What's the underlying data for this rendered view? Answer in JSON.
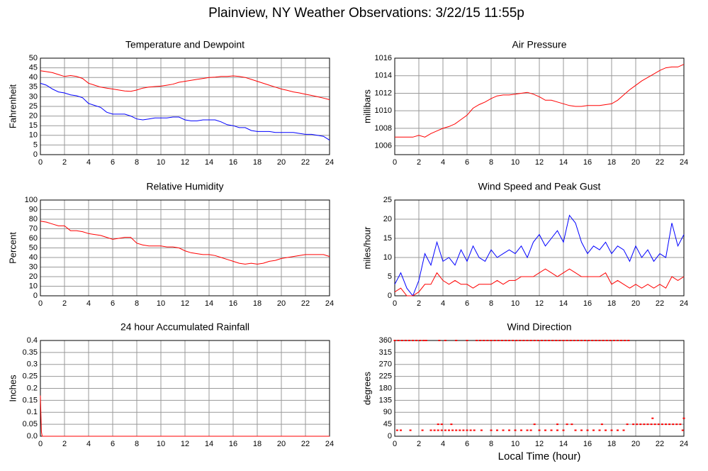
{
  "title": "Plainview, NY Weather Observations: 3/22/15 11:55p",
  "chart_data": [
    {
      "type": "line",
      "title": "Temperature and Dewpoint",
      "ylabel": "Fahrenheit",
      "grid": true,
      "xlim": [
        0,
        24
      ],
      "xticks": [
        0,
        2,
        4,
        6,
        8,
        10,
        12,
        14,
        16,
        18,
        20,
        22,
        24
      ],
      "ylim": [
        0,
        50
      ],
      "yticks": [
        0,
        5,
        10,
        15,
        20,
        25,
        30,
        35,
        40,
        45,
        50
      ],
      "x": [
        0,
        0.5,
        1,
        1.5,
        2,
        2.5,
        3,
        3.5,
        4,
        4.5,
        5,
        5.5,
        6,
        6.5,
        7,
        7.5,
        8,
        8.5,
        9,
        9.5,
        10,
        10.5,
        11,
        11.5,
        12,
        12.5,
        13,
        13.5,
        14,
        14.5,
        15,
        15.5,
        16,
        16.5,
        17,
        17.5,
        18,
        18.5,
        19,
        19.5,
        20,
        20.5,
        21,
        21.5,
        22,
        22.5,
        23,
        23.5,
        24
      ],
      "series": [
        {
          "color": "#ff0000",
          "values": [
            43.5,
            43,
            42.5,
            41.5,
            40.5,
            41,
            40.5,
            39.5,
            37,
            36,
            35,
            34.5,
            34,
            33.5,
            33,
            32.8,
            33.5,
            34.5,
            35,
            35.3,
            35.5,
            36,
            36.5,
            37.5,
            38,
            38.5,
            39,
            39.5,
            40,
            40.2,
            40.5,
            40.5,
            40.8,
            40.5,
            40,
            39,
            38,
            37,
            36,
            35,
            34,
            33.3,
            32.5,
            32,
            31.3,
            30.7,
            30,
            29.3,
            28.5
          ]
        },
        {
          "color": "#0000ff",
          "values": [
            37,
            36,
            34,
            32.5,
            32,
            31,
            30.5,
            29.5,
            26.5,
            25.5,
            24.5,
            22,
            21,
            21,
            21,
            20,
            18.5,
            18,
            18.5,
            19,
            19,
            19,
            19.5,
            19.5,
            18,
            17.5,
            17.5,
            18,
            18,
            18,
            17,
            15.5,
            15,
            14,
            14,
            12.5,
            12,
            12,
            12,
            11.5,
            11.5,
            11.5,
            11.5,
            11,
            10.5,
            10.5,
            10,
            9.5,
            7.5
          ]
        }
      ]
    },
    {
      "type": "line",
      "title": "Air Pressure",
      "ylabel": "millibars",
      "grid": true,
      "xlim": [
        0,
        24
      ],
      "xticks": [
        0,
        2,
        4,
        6,
        8,
        10,
        12,
        14,
        16,
        18,
        20,
        22,
        24
      ],
      "ylim": [
        1005,
        1016
      ],
      "yticks": [
        1006,
        1008,
        1010,
        1012,
        1014,
        1016
      ],
      "x": [
        0,
        0.5,
        1,
        1.5,
        2,
        2.5,
        3,
        3.5,
        4,
        4.5,
        5,
        5.5,
        6,
        6.5,
        7,
        7.5,
        8,
        8.5,
        9,
        9.5,
        10,
        10.5,
        11,
        11.5,
        12,
        12.5,
        13,
        13.5,
        14,
        14.5,
        15,
        15.5,
        16,
        16.5,
        17,
        17.5,
        18,
        18.5,
        19,
        19.5,
        20,
        20.5,
        21,
        21.5,
        22,
        22.5,
        23,
        23.5,
        24
      ],
      "series": [
        {
          "color": "#ff0000",
          "values": [
            1007,
            1007,
            1007,
            1007,
            1007.2,
            1007,
            1007.4,
            1007.7,
            1008,
            1008.2,
            1008.5,
            1009,
            1009.5,
            1010.3,
            1010.7,
            1011,
            1011.4,
            1011.7,
            1011.8,
            1011.8,
            1011.9,
            1012,
            1012.1,
            1011.9,
            1011.6,
            1011.2,
            1011.2,
            1011,
            1010.8,
            1010.6,
            1010.5,
            1010.5,
            1010.6,
            1010.6,
            1010.6,
            1010.7,
            1010.8,
            1011.2,
            1011.8,
            1012.4,
            1012.9,
            1013.4,
            1013.8,
            1014.2,
            1014.6,
            1014.9,
            1015,
            1015,
            1015.3
          ]
        }
      ]
    },
    {
      "type": "line",
      "title": "Relative Humidity",
      "ylabel": "Percent",
      "grid": true,
      "xlim": [
        0,
        24
      ],
      "xticks": [
        0,
        2,
        4,
        6,
        8,
        10,
        12,
        14,
        16,
        18,
        20,
        22,
        24
      ],
      "ylim": [
        0,
        100
      ],
      "yticks": [
        0,
        10,
        20,
        30,
        40,
        50,
        60,
        70,
        80,
        90,
        100
      ],
      "x": [
        0,
        0.5,
        1,
        1.5,
        2,
        2.5,
        3,
        3.5,
        4,
        4.5,
        5,
        5.5,
        6,
        6.5,
        7,
        7.5,
        8,
        8.5,
        9,
        9.5,
        10,
        10.5,
        11,
        11.5,
        12,
        12.5,
        13,
        13.5,
        14,
        14.5,
        15,
        15.5,
        16,
        16.5,
        17,
        17.5,
        18,
        18.5,
        19,
        19.5,
        20,
        20.5,
        21,
        21.5,
        22,
        22.5,
        23,
        23.5,
        24
      ],
      "series": [
        {
          "color": "#ff0000",
          "values": [
            78,
            77,
            75,
            73,
            73,
            68,
            68,
            67,
            65,
            64,
            63,
            61,
            59,
            60,
            61,
            61,
            55,
            53,
            52,
            52,
            52,
            51,
            51,
            50,
            47,
            45,
            44,
            43,
            43,
            42,
            40,
            38,
            36,
            34,
            33,
            34,
            33,
            34,
            36,
            37,
            39,
            40,
            41,
            42,
            43,
            43,
            43,
            43,
            41
          ]
        }
      ]
    },
    {
      "type": "line",
      "title": "Wind Speed and Peak Gust",
      "ylabel": "miles/hour",
      "grid": true,
      "xlim": [
        0,
        24
      ],
      "xticks": [
        0,
        2,
        4,
        6,
        8,
        10,
        12,
        14,
        16,
        18,
        20,
        22,
        24
      ],
      "ylim": [
        0,
        25
      ],
      "yticks": [
        0,
        5,
        10,
        15,
        20,
        25
      ],
      "x": [
        0,
        0.5,
        1,
        1.5,
        2,
        2.5,
        3,
        3.5,
        4,
        4.5,
        5,
        5.5,
        6,
        6.5,
        7,
        7.5,
        8,
        8.5,
        9,
        9.5,
        10,
        10.5,
        11,
        11.5,
        12,
        12.5,
        13,
        13.5,
        14,
        14.5,
        15,
        15.5,
        16,
        16.5,
        17,
        17.5,
        18,
        18.5,
        19,
        19.5,
        20,
        20.5,
        21,
        21.5,
        22,
        22.5,
        23,
        23.5,
        24
      ],
      "series": [
        {
          "color": "#0000ff",
          "values": [
            3,
            6,
            2,
            0,
            4,
            11,
            8,
            14,
            9,
            10,
            8,
            12,
            9,
            13,
            10,
            9,
            12,
            10,
            11,
            12,
            11,
            13,
            10,
            14,
            16,
            13,
            15,
            17,
            14,
            21,
            19,
            14,
            11,
            13,
            12,
            14,
            11,
            13,
            12,
            9,
            13,
            10,
            12,
            9,
            11,
            10,
            19,
            13,
            16
          ]
        },
        {
          "color": "#ff0000",
          "values": [
            1,
            2,
            0,
            0,
            1,
            3,
            3,
            6,
            4,
            3,
            4,
            3,
            3,
            2,
            3,
            3,
            3,
            4,
            3,
            4,
            4,
            5,
            5,
            5,
            6,
            7,
            6,
            5,
            6,
            7,
            6,
            5,
            5,
            5,
            5,
            6,
            3,
            4,
            3,
            2,
            3,
            2,
            3,
            2,
            3,
            2,
            5,
            4,
            5
          ]
        }
      ]
    },
    {
      "type": "line",
      "title": "24 hour Accumulated Rainfall",
      "ylabel": "Inches",
      "grid": true,
      "xlim": [
        0,
        24
      ],
      "xticks": [
        0,
        2,
        4,
        6,
        8,
        10,
        12,
        14,
        16,
        18,
        20,
        22,
        24
      ],
      "ylim": [
        0,
        0.4
      ],
      "yticks": [
        {
          "value": 0,
          "label": "0.0"
        },
        0.05,
        0.1,
        0.15,
        0.2,
        0.25,
        0.3,
        0.35,
        0.4
      ],
      "x": [
        0,
        0.08,
        0.15,
        24
      ],
      "series": [
        {
          "color": "#ff0000",
          "values": [
            0.17,
            0.02,
            0,
            0
          ]
        }
      ]
    },
    {
      "type": "scatter",
      "title": "Wind Direction",
      "ylabel": "degrees",
      "xlabel": "Local Time (hour)",
      "grid": true,
      "xlim": [
        0,
        24
      ],
      "xticks": [
        0,
        2,
        4,
        6,
        8,
        10,
        12,
        14,
        16,
        18,
        20,
        22,
        24
      ],
      "ylim": [
        0,
        360
      ],
      "yticks": [
        0,
        45,
        90,
        135,
        180,
        225,
        270,
        315,
        360
      ],
      "x": [
        0,
        0.3,
        0.6,
        0.9,
        1.2,
        1.5,
        1.8,
        2.1,
        2.4,
        2.6,
        3.7,
        4.2,
        5.1,
        6,
        6.8,
        7.1,
        7.4,
        7.7,
        8,
        8.3,
        8.6,
        8.9,
        9.2,
        9.5,
        9.8,
        10.1,
        10.4,
        10.7,
        11,
        11.3,
        11.6,
        11.9,
        12.2,
        12.5,
        12.8,
        13.1,
        13.4,
        13.7,
        14,
        14.3,
        14.6,
        14.9,
        15.2,
        15.5,
        15.8,
        16.1,
        16.4,
        16.7,
        17,
        17.3,
        17.6,
        17.9,
        18.2,
        18.5,
        18.8,
        19.1,
        19.4,
        0.2,
        0.5,
        1.3,
        2.3,
        3,
        3.3,
        3.6,
        3.9,
        4.2,
        4.5,
        4.8,
        5.1,
        5.4,
        5.7,
        6,
        6.3,
        6.6,
        7.2,
        8,
        8.5,
        9,
        9.5,
        10,
        10.5,
        11,
        11.3,
        12,
        12.5,
        13,
        13.5,
        14,
        15,
        15.5,
        16,
        16.5,
        17,
        17.5,
        18,
        18.5,
        19,
        19.3,
        3.6,
        3.9,
        4.7,
        11.6,
        13.5,
        14.3,
        14.7,
        17.2,
        19.8,
        20.1,
        20.4,
        20.7,
        21,
        21.3,
        21.6,
        21.9,
        22.2,
        22.5,
        22.8,
        23.1,
        23.4,
        23.7,
        24,
        21.4,
        23.9,
        22
      ],
      "series": [
        {
          "color": "#ff0000",
          "values": [
            360,
            360,
            360,
            360,
            360,
            360,
            360,
            360,
            360,
            360,
            360,
            360,
            360,
            360,
            360,
            360,
            360,
            360,
            360,
            360,
            360,
            360,
            360,
            360,
            360,
            360,
            360,
            360,
            360,
            360,
            360,
            360,
            360,
            360,
            360,
            360,
            360,
            360,
            360,
            360,
            360,
            360,
            360,
            360,
            360,
            360,
            360,
            360,
            360,
            360,
            360,
            360,
            360,
            360,
            360,
            360,
            360,
            22.5,
            22.5,
            22.5,
            22.5,
            22.5,
            22.5,
            22.5,
            22.5,
            22.5,
            22.5,
            22.5,
            22.5,
            22.5,
            22.5,
            22.5,
            22.5,
            22.5,
            22.5,
            22.5,
            22.5,
            22.5,
            22.5,
            22.5,
            22.5,
            22.5,
            22.5,
            22.5,
            22.5,
            22.5,
            22.5,
            22.5,
            22.5,
            22.5,
            22.5,
            22.5,
            22.5,
            22.5,
            22.5,
            22.5,
            22.5,
            45,
            45,
            45,
            45,
            45,
            45,
            45,
            45,
            45,
            45,
            45,
            45,
            45,
            45,
            45,
            45,
            45,
            45,
            45,
            45,
            45,
            45,
            45,
            67.5,
            67.5,
            22.5
          ]
        }
      ]
    }
  ]
}
